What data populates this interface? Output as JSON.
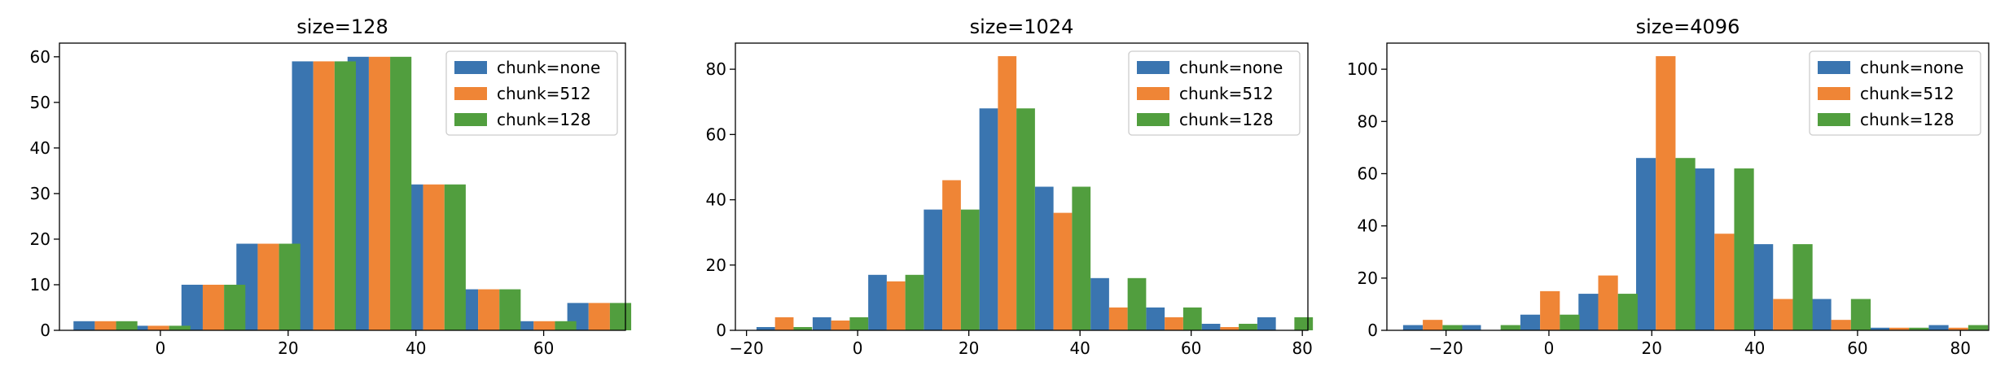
{
  "chart_data": [
    {
      "type": "bar",
      "title": "size=128",
      "xlabel": "",
      "ylabel": "",
      "xlim": [
        -15.8,
        72.8
      ],
      "ylim": [
        0,
        63
      ],
      "xticks": [
        0,
        20,
        40,
        60
      ],
      "yticks": [
        0,
        10,
        20,
        30,
        40,
        50,
        60
      ],
      "grid": false,
      "legend_position": "top-right",
      "bin_width": 10,
      "x": [
        -8.6,
        -0.3,
        8.3,
        16.9,
        25.6,
        34.3,
        42.8,
        51.4,
        60.1,
        68.7
      ],
      "series": [
        {
          "name": "chunk=none",
          "color": "#3a75b0",
          "values": [
            2,
            1,
            10,
            19,
            59,
            60,
            32,
            9,
            2,
            6
          ]
        },
        {
          "name": "chunk=512",
          "color": "#ef8536",
          "values": [
            2,
            1,
            10,
            19,
            59,
            60,
            32,
            9,
            2,
            6
          ]
        },
        {
          "name": "chunk=128",
          "color": "#519e3e",
          "values": [
            2,
            1,
            10,
            19,
            59,
            60,
            32,
            9,
            2,
            6
          ]
        }
      ]
    },
    {
      "type": "bar",
      "title": "size=1024",
      "xlabel": "",
      "ylabel": "",
      "xlim": [
        -22,
        81
      ],
      "ylim": [
        0,
        88
      ],
      "xticks": [
        -20,
        0,
        20,
        40,
        60,
        80
      ],
      "yticks": [
        0,
        20,
        40,
        60,
        80
      ],
      "grid": false,
      "legend_position": "top-right",
      "bin_width": 10,
      "x": [
        -13.2,
        -3.1,
        6.9,
        16.9,
        26.9,
        36.9,
        46.9,
        56.9,
        66.9,
        76.9
      ],
      "series": [
        {
          "name": "chunk=none",
          "color": "#3a75b0",
          "values": [
            1,
            4,
            17,
            37,
            68,
            44,
            16,
            7,
            2,
            4
          ]
        },
        {
          "name": "chunk=512",
          "color": "#ef8536",
          "values": [
            4,
            3,
            15,
            46,
            84,
            36,
            7,
            4,
            1,
            0
          ]
        },
        {
          "name": "chunk=128",
          "color": "#519e3e",
          "values": [
            1,
            4,
            17,
            37,
            68,
            44,
            16,
            7,
            2,
            4
          ]
        }
      ]
    },
    {
      "type": "bar",
      "title": "size=4096",
      "xlabel": "",
      "ylabel": "",
      "xlim": [
        -31.5,
        85.5
      ],
      "ylim": [
        0,
        110
      ],
      "xticks": [
        -20,
        0,
        20,
        40,
        60,
        80
      ],
      "yticks": [
        0,
        20,
        40,
        60,
        80,
        100
      ],
      "grid": false,
      "legend_position": "top-right",
      "bin_width": 11.5,
      "x": [
        -22.6,
        -11.3,
        0.2,
        11.5,
        22.7,
        34.1,
        45.5,
        56.8,
        68.1,
        79.6
      ],
      "series": [
        {
          "name": "chunk=none",
          "color": "#3a75b0",
          "values": [
            2,
            2,
            6,
            14,
            66,
            62,
            33,
            12,
            1,
            2
          ]
        },
        {
          "name": "chunk=512",
          "color": "#ef8536",
          "values": [
            4,
            0,
            15,
            21,
            105,
            37,
            12,
            4,
            1,
            1
          ]
        },
        {
          "name": "chunk=128",
          "color": "#519e3e",
          "values": [
            2,
            2,
            6,
            14,
            66,
            62,
            33,
            12,
            1,
            2
          ]
        }
      ]
    }
  ]
}
